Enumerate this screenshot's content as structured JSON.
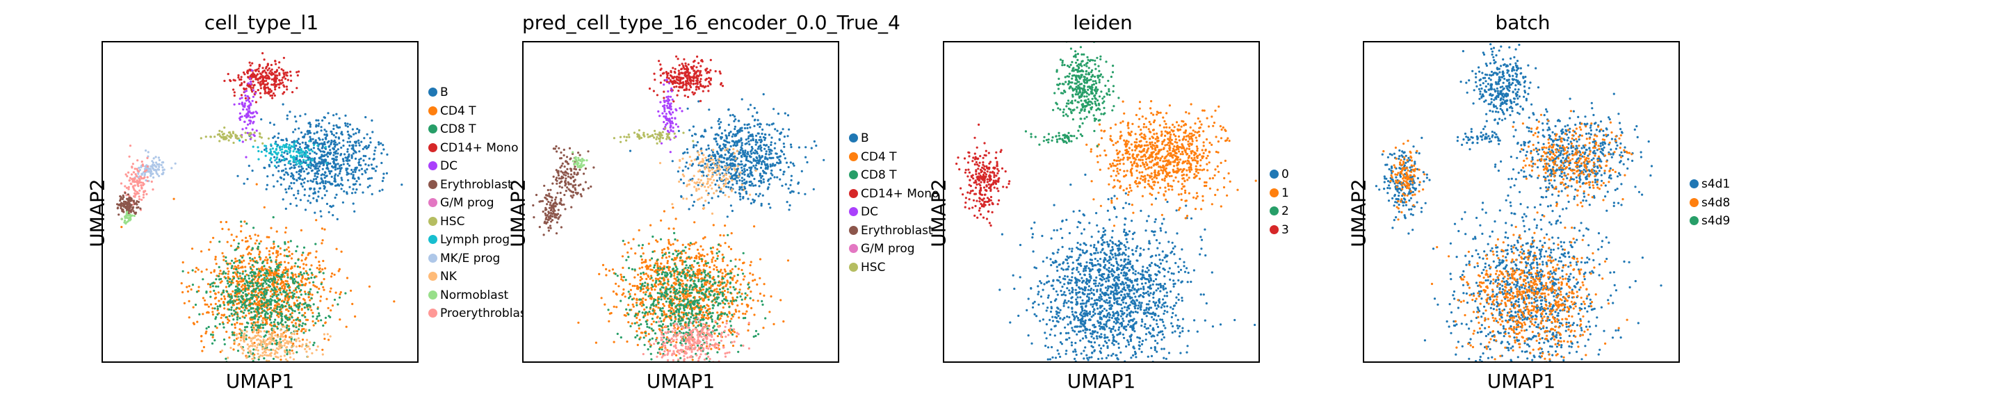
{
  "chart_data": [
    {
      "type": "scatter",
      "title": "cell_type_l1",
      "xlabel": "UMAP1",
      "ylabel": "UMAP2",
      "legend_position": "right",
      "categories": [
        {
          "label": "B",
          "color": "#1f77b4"
        },
        {
          "label": "CD4 T",
          "color": "#ff7f0e"
        },
        {
          "label": "CD8 T",
          "color": "#279e68"
        },
        {
          "label": "CD14+ Mono",
          "color": "#d62728"
        },
        {
          "label": "DC",
          "color": "#aa40fc"
        },
        {
          "label": "Erythroblast",
          "color": "#8c564b"
        },
        {
          "label": "G/M prog",
          "color": "#e377c2"
        },
        {
          "label": "HSC",
          "color": "#b5bd61"
        },
        {
          "label": "Lymph prog",
          "color": "#17becf"
        },
        {
          "label": "MK/E prog",
          "color": "#aec7e8"
        },
        {
          "label": "NK",
          "color": "#ffbb78"
        },
        {
          "label": "Normoblast",
          "color": "#98df8a"
        },
        {
          "label": "Proerythroblast",
          "color": "#ff9896"
        }
      ]
    },
    {
      "type": "scatter",
      "title": "pred_cell_type_16_encoder_0.0_True_4",
      "xlabel": "UMAP1",
      "ylabel": "UMAP2",
      "legend_position": "right",
      "categories": [
        {
          "label": "B",
          "color": "#1f77b4"
        },
        {
          "label": "CD4 T",
          "color": "#ff7f0e"
        },
        {
          "label": "CD8 T",
          "color": "#279e68"
        },
        {
          "label": "CD14+ Mono",
          "color": "#d62728"
        },
        {
          "label": "DC",
          "color": "#aa40fc"
        },
        {
          "label": "Erythroblast",
          "color": "#8c564b"
        },
        {
          "label": "G/M prog",
          "color": "#e377c2"
        },
        {
          "label": "HSC",
          "color": "#b5bd61"
        }
      ]
    },
    {
      "type": "scatter",
      "title": "leiden",
      "xlabel": "UMAP1",
      "ylabel": "UMAP2",
      "legend_position": "right",
      "categories": [
        {
          "label": "0",
          "color": "#1f77b4"
        },
        {
          "label": "1",
          "color": "#ff7f0e"
        },
        {
          "label": "2",
          "color": "#279e68"
        },
        {
          "label": "3",
          "color": "#d62728"
        }
      ]
    },
    {
      "type": "scatter",
      "title": "batch",
      "xlabel": "UMAP1",
      "ylabel": "UMAP2",
      "legend_position": "right",
      "categories": [
        {
          "label": "s4d1",
          "color": "#1f77b4"
        },
        {
          "label": "s4d8",
          "color": "#ff7f0e"
        },
        {
          "label": "s4d9",
          "color": "#279e68"
        }
      ]
    }
  ]
}
